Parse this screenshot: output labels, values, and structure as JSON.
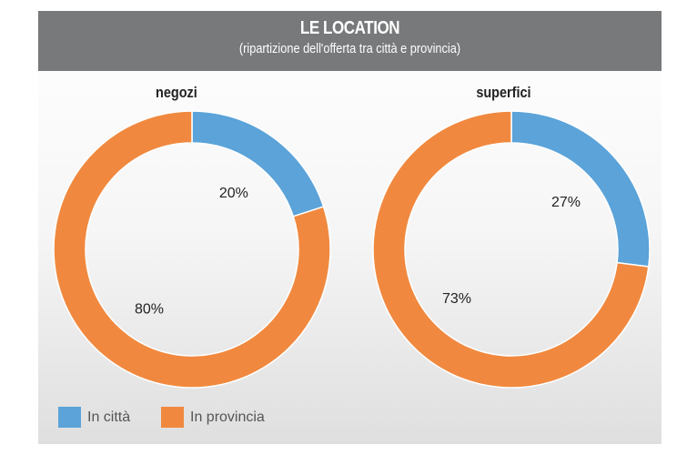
{
  "chart_data": [
    {
      "type": "pie",
      "variant": "donut",
      "title": "negozi",
      "categories": [
        "In città",
        "In provincia"
      ],
      "values": [
        20,
        80
      ],
      "labels": [
        "20%",
        "80%"
      ]
    },
    {
      "type": "pie",
      "variant": "donut",
      "title": "superfici",
      "categories": [
        "In città",
        "In provincia"
      ],
      "values": [
        27,
        73
      ],
      "labels": [
        "27%",
        "73%"
      ]
    }
  ],
  "header": {
    "title": "LE LOCATION",
    "subtitle": "(ripartizione dell'offerta tra città e provincia)"
  },
  "legend": [
    {
      "label": "In città",
      "color": "#5ba3d9"
    },
    {
      "label": "In provincia",
      "color": "#f0893f"
    }
  ]
}
